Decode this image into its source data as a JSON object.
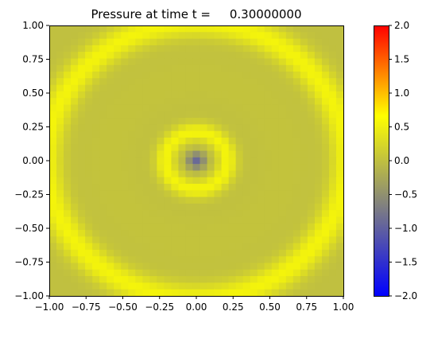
{
  "chart_data": {
    "type": "heatmap",
    "title": "Pressure at time t =     0.30000000",
    "xlabel": "",
    "ylabel": "",
    "xlim": [
      -1.0,
      1.0
    ],
    "ylim": [
      -1.0,
      1.0
    ],
    "grid": false,
    "x_ticks": [
      "−1.00",
      "−0.75",
      "−0.50",
      "−0.25",
      "0.00",
      "0.25",
      "0.50",
      "0.75",
      "1.00"
    ],
    "y_ticks": [
      "−1.00",
      "−0.75",
      "−0.50",
      "−0.25",
      "0.00",
      "0.25",
      "0.50",
      "0.75",
      "1.00"
    ],
    "x_tick_values": [
      -1.0,
      -0.75,
      -0.5,
      -0.25,
      0.0,
      0.25,
      0.5,
      0.75,
      1.0
    ],
    "y_tick_values": [
      -1.0,
      -0.75,
      -0.5,
      -0.25,
      0.0,
      0.25,
      0.5,
      0.75,
      1.0
    ],
    "grid_resolution": 41,
    "field": {
      "description_of_values": "pressure field sampled on a 41x41 grid over [-1,1]x[-1,1]",
      "background": 0.0,
      "center_value": -0.9,
      "inner_ring_radius": 0.21,
      "inner_ring_peak": 0.55,
      "outer_ring_radius": 1.02,
      "outer_ring_peak": 0.55
    },
    "colorbar": {
      "vmin": -2.0,
      "vmax": 2.0,
      "ticks": [
        "−2.0",
        "−1.5",
        "−1.0",
        "−0.5",
        "0.0",
        "0.5",
        "1.0",
        "1.5",
        "2.0"
      ],
      "tick_values": [
        -2.0,
        -1.5,
        -1.0,
        -0.5,
        0.0,
        0.5,
        1.0,
        1.5,
        2.0
      ],
      "colors": [
        "#0000ff",
        "#808080",
        "#ffff00",
        "#ff0000"
      ]
    }
  }
}
